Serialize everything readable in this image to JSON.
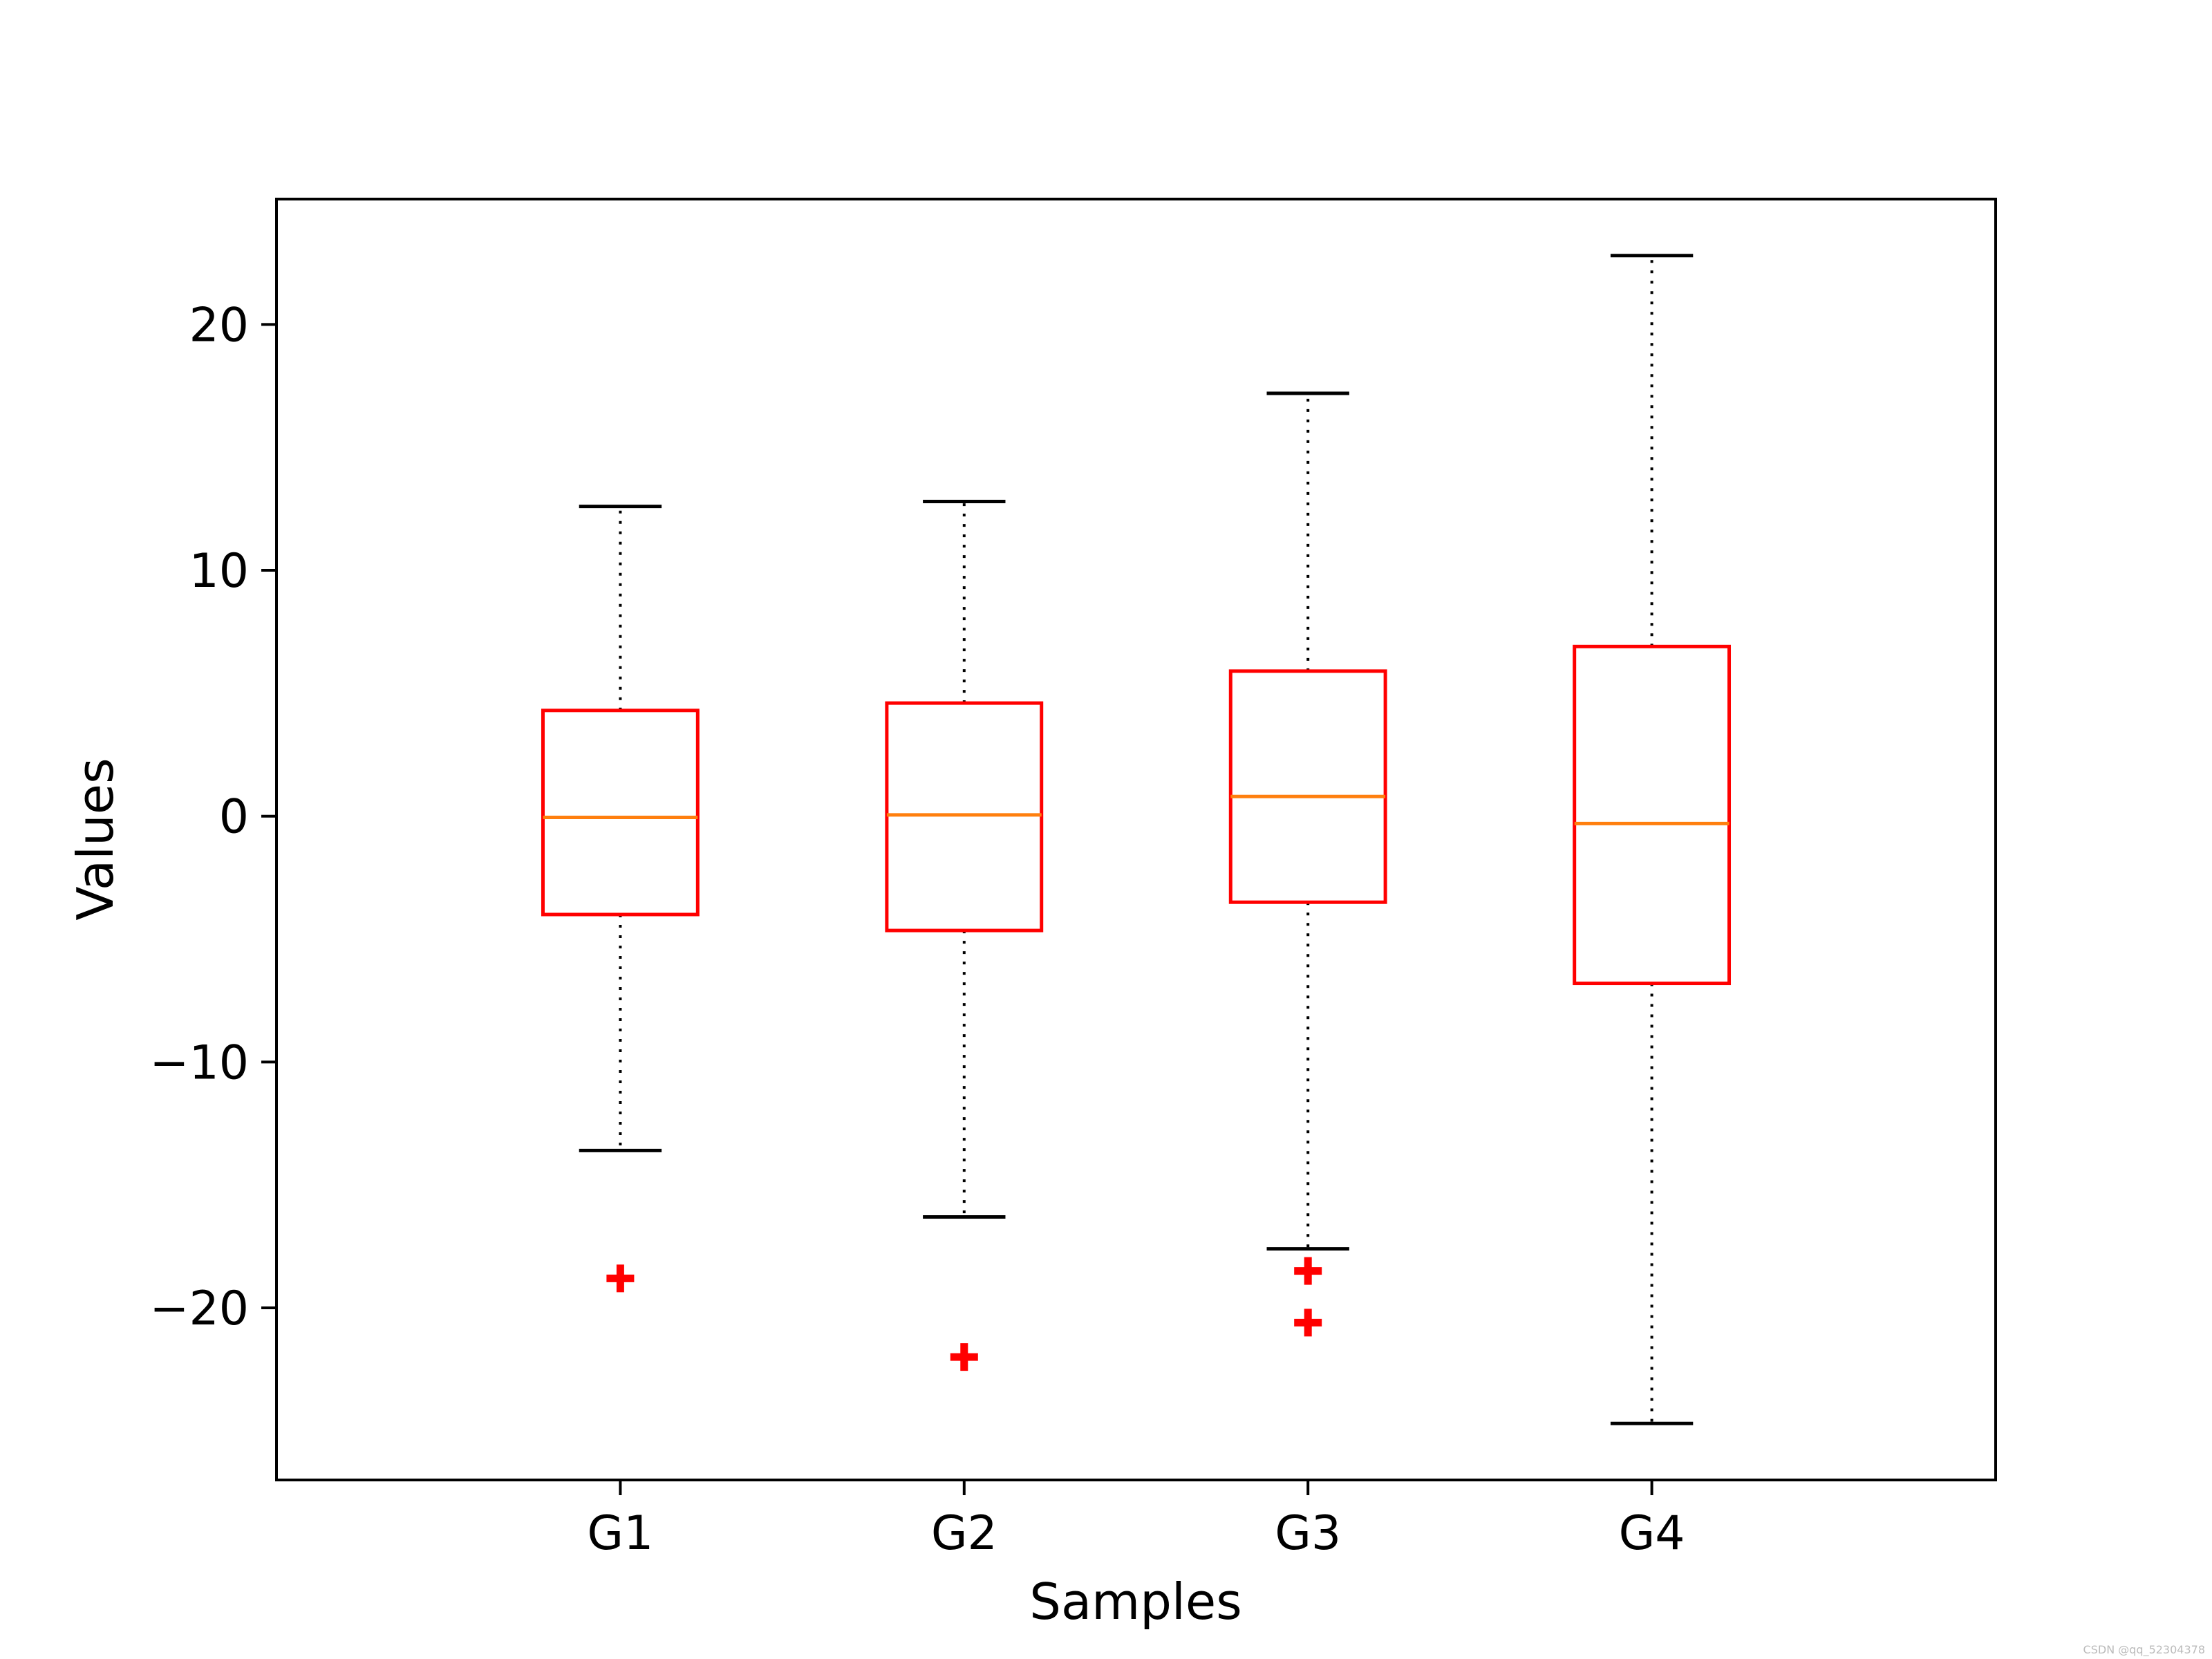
{
  "chart_data": {
    "type": "box",
    "xlabel": "Samples",
    "ylabel": "Values",
    "categories": [
      "G1",
      "G2",
      "G3",
      "G4"
    ],
    "ylim": [
      -27,
      25.1
    ],
    "yticks": [
      -20,
      -10,
      0,
      10,
      20
    ],
    "yticklabels": [
      "−20",
      "−10",
      "0",
      "10",
      "20"
    ],
    "grid": false,
    "legend": "none",
    "boxes": [
      {
        "name": "G1",
        "whisker_low": -13.6,
        "q1": -4.0,
        "median": -0.05,
        "q3": 4.3,
        "whisker_high": 12.6,
        "outliers": [
          -18.8
        ]
      },
      {
        "name": "G2",
        "whisker_low": -16.3,
        "q1": -4.65,
        "median": 0.05,
        "q3": 4.6,
        "whisker_high": 12.8,
        "outliers": [
          -22.0
        ]
      },
      {
        "name": "G3",
        "whisker_low": -17.6,
        "q1": -3.5,
        "median": 0.8,
        "q3": 5.9,
        "whisker_high": 17.2,
        "outliers": [
          -18.5,
          -20.6
        ]
      },
      {
        "name": "G4",
        "whisker_low": -24.7,
        "q1": -6.8,
        "median": -0.3,
        "q3": 6.9,
        "whisker_high": 22.8,
        "outliers": []
      }
    ],
    "colors": {
      "box": "#ff0000",
      "median": "#ff7f0e",
      "whisker": "#000000",
      "outlier": "#ff0000"
    }
  },
  "watermark": "CSDN @qq_52304378"
}
